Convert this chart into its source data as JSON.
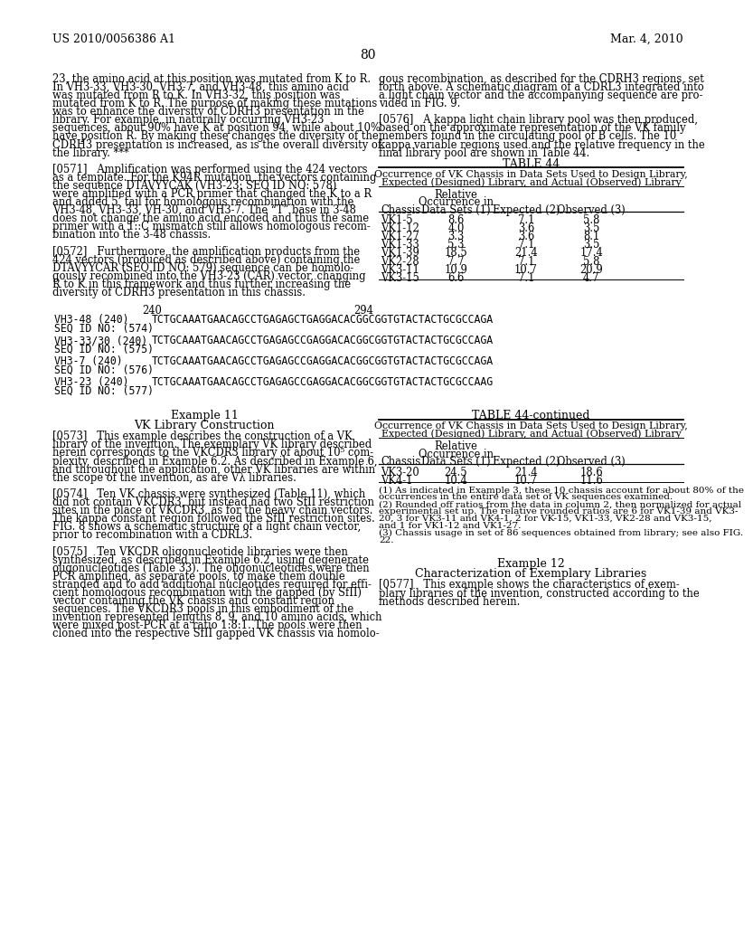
{
  "page_header_left": "US 2010/0056386 A1",
  "page_header_right": "Mar. 4, 2010",
  "page_number": "80",
  "background_color": "#ffffff",
  "left_col_lines_top": [
    "23, the amino acid at this position was mutated from K to R.",
    "In VH3-33, VH3-30, VH3-7, and VH3-48, this amino acid",
    "was mutated from R to K. In VH3-32, this position was",
    "mutated from K to R. The purpose of making these mutations",
    "was to enhance the diversity of CDRH3 presentation in the",
    "library. For example, in naturally occurring VH3-23",
    "sequences, about 90% have K at position 94, while about 10%",
    "have position R. By making these changes the diversity of the",
    "CDRH3 presentation is increased, as is the overall diversity of",
    "the library. ***",
    "",
    "[0571]   Amplification was performed using the 424 vectors",
    "as a template. For the K94R mutation, the vectors containing",
    "the sequence DTAVYYCAK (VH3-23; SEQ ID NO: 578)",
    "were amplified with a PCR primer that changed the K to a R",
    "and added 5’ tail for homologous recombination with the",
    "VH3-48, VH3-33, VH-30, and VH3-7. The “T” base in 3-48",
    "does not change the amino acid encoded and thus the same",
    "primer with a T::C mismatch still allows homologous recom-",
    "bination into the 3-48 chassis.",
    "",
    "[0572]   Furthermore, the amplification products from the",
    "424 vectors (produced as described above) containing the",
    "DTAVYYCAR (SEQ ID NO: 579) sequence can be homolo-",
    "gously recombined into the VH3-23 (CAR) vector, changing",
    "R to K in this framework and thus further increasing the",
    "diversity of CDRH3 presentation in this chassis."
  ],
  "right_col_lines_top": [
    "gous recombination, as described for the CDRH3 regions, set",
    "forth above. A schematic diagram of a CDRL3 integrated into",
    "a light chain vector and the accompanying sequence are pro-",
    "vided in FIG. 9.",
    "",
    "[0576]   A kappa light chain library pool was then produced,",
    "based on the approximate representation of the VK family",
    "members found in the circulating pool of B cells. The 10",
    "kappa variable regions used and the relative frequency in the",
    "final library pool are shown in Table 44."
  ],
  "table44_title": "TABLE 44",
  "table44_subtitle_line1": "Occurrence of VK Chassis in Data Sets Used to Design Library,",
  "table44_subtitle_line2": "Expected (Designed) Library, and Actual (Observed) Library",
  "table44_col_headers": [
    [
      "Chassis"
    ],
    [
      "Relative",
      "Occurrence in",
      "Data Sets (1)"
    ],
    [
      "Expected (2)"
    ],
    [
      "Observed (3)"
    ]
  ],
  "table44_rows": [
    [
      "VK1-5",
      "8.6",
      "7.1",
      "5.8"
    ],
    [
      "VK1-12",
      "4.0",
      "3.6",
      "3.5"
    ],
    [
      "VK1-27",
      "3.3",
      "3.6",
      "8.1"
    ],
    [
      "VK1-33",
      "5.3",
      "7.1",
      "3.5"
    ],
    [
      "VK1-39",
      "18.5",
      "21.4",
      "17.4"
    ],
    [
      "VK2-28",
      "7.7",
      "7.1",
      "5.8"
    ],
    [
      "VK3-11",
      "10.9",
      "10.7",
      "20.9"
    ],
    [
      "VK3-15",
      "6.6",
      "7.1",
      "4.7"
    ]
  ],
  "seq_num_240": "240",
  "seq_num_294": "294",
  "seq_entries": [
    {
      "label": "VH3-48 (240)",
      "seq_id": "SEQ ID NO: (574)",
      "sequence": "TCTGCAAATGAACAGCCTGAGAGCTGAGGACACGGCGGTGTACTACTGCGCCAGA"
    },
    {
      "label": "VH3-33/30 (240)",
      "seq_id": "SEQ ID NO: (575)",
      "sequence": "TCTGCAAATGAACAGCCTGAGAGCCGAGGACACGGCGGTGTACTACTGCGCCAGA"
    },
    {
      "label": "VH3-7 (240)",
      "seq_id": "SEQ ID NO: (576)",
      "sequence": "TCTGCAAATGAACAGCCTGAGAGCCGAGGACACGGCGGTGTACTACTGCGCCAGA"
    },
    {
      "label": "VH3-23 (240)",
      "seq_id": "SEQ ID NO: (577)",
      "sequence": "TCTGCAAATGAACAGCCTGAGAGCCGAGGACACGGCGGTGTACTACTGCGCCAAG"
    }
  ],
  "example11_heading": "Example 11",
  "example11_subheading": "VK Library Construction",
  "left_col_lines_bottom": [
    "[0573]   This example describes the construction of a VK",
    "library of the invention. The exemplary VK library described",
    "herein corresponds to the VKCDR3 library of about 10⁵ com-",
    "plexity, described in Example 6.2. As described in Example 6,",
    "and throughout the application, other VK libraries are within",
    "the scope of the invention, as are Vλ libraries.",
    "",
    "[0574]   Ten VK chassis were synthesized (Table 11), which",
    "did not contain VKCDR3, but instead had two SfII restriction",
    "sites in the place of VKCDR3, as for the heavy chain vectors.",
    "The kappa constant region followed the SfII restriction sites.",
    "FIG. 8 shows a schematic structure of a light chain vector,",
    "prior to recombination with a CDRL3.",
    "",
    "[0575]   Ten VKCDR oligonucleotide libraries were then",
    "synthesized, as described in Example 6.2, using degenerate",
    "oligonucleotides (Table 33). The oligonucleotides were then",
    "PCR amplified, as separate pools, to make them double",
    "stranded and to add additional nucleotides required for effi-",
    "cient homologous recombination with the gapped (by SfII)",
    "vector containing the VK chassis and constant region",
    "sequences. The VKCDR3 pools in this embodiment of the",
    "invention represented lengths 8, 9, and 10 amino acids, which",
    "were mixed post-PCR at a ratio 1:8:1. The pools were then",
    "cloned into the respective SfII gapped VK chassis via homolo-"
  ],
  "table44cont_title": "TABLE 44-continued",
  "table44cont_subtitle_line1": "Occurrence of VK Chassis in Data Sets Used to Design Library,",
  "table44cont_subtitle_line2": "Expected (Designed) Library, and Actual (Observed) Library",
  "table44cont_col_headers": [
    [
      "Chassis"
    ],
    [
      "Relative",
      "Occurrence in",
      "Data Sets (1)"
    ],
    [
      "Expected (2)"
    ],
    [
      "Observed (3)"
    ]
  ],
  "table44cont_rows": [
    [
      "VK3-20",
      "24.5",
      "21.4",
      "18.6"
    ],
    [
      "VK4-1",
      "10.4",
      "10.7",
      "11.6"
    ]
  ],
  "table44cont_footnote_lines": [
    "(1) As indicated in Example 3, these 10 chassis account for about 80% of the",
    "occurrences in the entire data set of VK sequences examined.",
    "(2) Rounded off ratios from the data in column 2, then normalized for actual",
    "experimental set up. The relative rounded ratios are 6 for VK1-39 and VK3-",
    "20, 3 for VK3-11 and VK4-1, 2 for VK-15, VK1-33, VK2-28 and VK3-15,",
    "and 1 for VK1-12 and VK1-27.",
    "(3) Chassis usage in set of 86 sequences obtained from library; see also FIG.",
    "22."
  ],
  "example12_heading": "Example 12",
  "example12_subheading": "Characterization of Exemplary Libraries",
  "para_0577_lines": [
    "[0577]   This example shows the characteristics of exem-",
    "plary libraries of the invention, constructed according to the",
    "methods described herein."
  ]
}
